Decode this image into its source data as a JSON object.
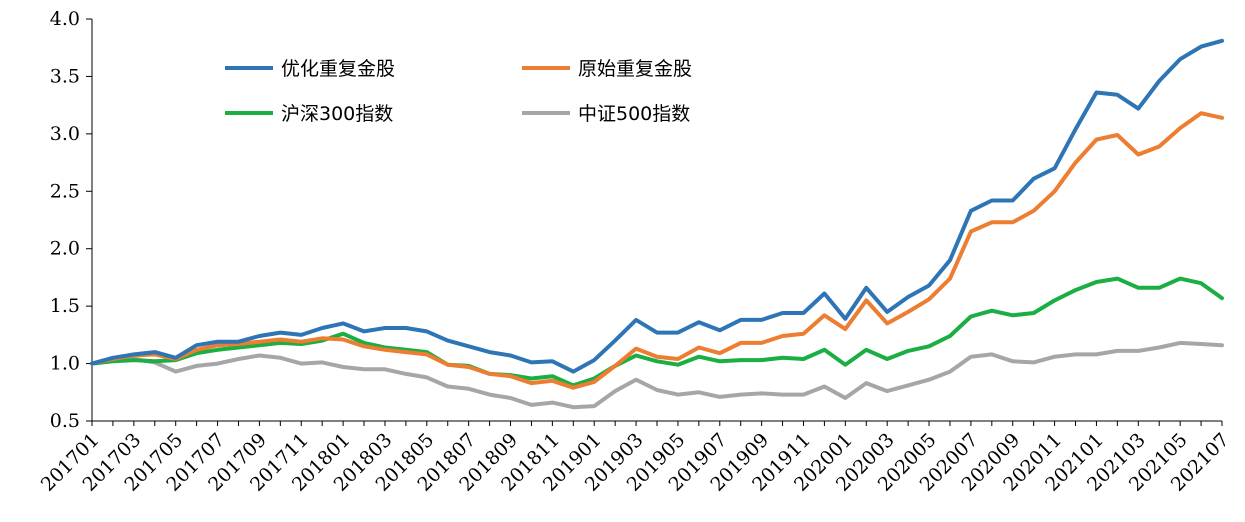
{
  "chart_data": {
    "type": "line",
    "title": "",
    "xlabel": "",
    "ylabel": "",
    "ylim": [
      0.5,
      4.0
    ],
    "yticks": [
      "0.5",
      "1.0",
      "1.5",
      "2.0",
      "2.5",
      "3.0",
      "3.5",
      "4.0"
    ],
    "grid": false,
    "legend_position": "top-left",
    "x": [
      "201701",
      "201702",
      "201703",
      "201704",
      "201705",
      "201706",
      "201707",
      "201708",
      "201709",
      "201710",
      "201711",
      "201712",
      "201801",
      "201802",
      "201803",
      "201804",
      "201805",
      "201806",
      "201807",
      "201808",
      "201809",
      "201810",
      "201811",
      "201812",
      "201901",
      "201902",
      "201903",
      "201904",
      "201905",
      "201906",
      "201907",
      "201908",
      "201909",
      "201910",
      "201911",
      "201912",
      "202001",
      "202002",
      "202003",
      "202004",
      "202005",
      "202006",
      "202007",
      "202008",
      "202009",
      "202010",
      "202011",
      "202012",
      "202101",
      "202102",
      "202103",
      "202104",
      "202105",
      "202106",
      "202107"
    ],
    "xtick_labels": [
      "201701",
      "201703",
      "201705",
      "201707",
      "201709",
      "201711",
      "201801",
      "201803",
      "201805",
      "201807",
      "201809",
      "201811",
      "201901",
      "201903",
      "201905",
      "201907",
      "201909",
      "201911",
      "202001",
      "202003",
      "202005",
      "202007",
      "202009",
      "202011",
      "202101",
      "202103",
      "202105",
      "202107"
    ],
    "series": [
      {
        "name": "优化重复金股",
        "color": "#2e75b6",
        "values": [
          1.0,
          1.05,
          1.08,
          1.1,
          1.05,
          1.16,
          1.19,
          1.19,
          1.24,
          1.27,
          1.25,
          1.31,
          1.35,
          1.28,
          1.31,
          1.31,
          1.28,
          1.2,
          1.15,
          1.1,
          1.07,
          1.01,
          1.02,
          0.93,
          1.03,
          1.2,
          1.38,
          1.27,
          1.27,
          1.36,
          1.29,
          1.38,
          1.38,
          1.44,
          1.44,
          1.61,
          1.39,
          1.66,
          1.45,
          1.58,
          1.68,
          1.9,
          2.33,
          2.42,
          2.42,
          2.61,
          2.7,
          3.04,
          3.36,
          3.34,
          3.22,
          3.46,
          3.65,
          3.76,
          3.81
        ]
      },
      {
        "name": "原始重复金股",
        "color": "#ed7d31",
        "values": [
          1.0,
          1.04,
          1.07,
          1.08,
          1.04,
          1.12,
          1.16,
          1.17,
          1.19,
          1.21,
          1.19,
          1.22,
          1.21,
          1.15,
          1.12,
          1.1,
          1.08,
          0.99,
          0.97,
          0.91,
          0.89,
          0.83,
          0.85,
          0.79,
          0.84,
          0.98,
          1.13,
          1.06,
          1.04,
          1.14,
          1.09,
          1.18,
          1.18,
          1.24,
          1.26,
          1.42,
          1.3,
          1.55,
          1.35,
          1.45,
          1.56,
          1.74,
          2.15,
          2.23,
          2.23,
          2.33,
          2.5,
          2.75,
          2.95,
          2.99,
          2.82,
          2.89,
          3.05,
          3.18,
          3.14
        ]
      },
      {
        "name": "沪深300指数",
        "color": "#1aae43",
        "values": [
          1.0,
          1.02,
          1.03,
          1.02,
          1.03,
          1.09,
          1.12,
          1.14,
          1.16,
          1.18,
          1.17,
          1.2,
          1.26,
          1.18,
          1.14,
          1.12,
          1.1,
          0.99,
          0.98,
          0.91,
          0.9,
          0.87,
          0.89,
          0.81,
          0.87,
          0.98,
          1.07,
          1.02,
          0.99,
          1.06,
          1.02,
          1.03,
          1.03,
          1.05,
          1.04,
          1.12,
          0.99,
          1.12,
          1.04,
          1.11,
          1.15,
          1.24,
          1.41,
          1.46,
          1.42,
          1.44,
          1.55,
          1.64,
          1.71,
          1.74,
          1.66,
          1.66,
          1.74,
          1.7,
          1.57
        ]
      },
      {
        "name": "中证500指数",
        "color": "#a6a6a6",
        "values": [
          1.0,
          1.03,
          1.04,
          1.01,
          0.93,
          0.98,
          1.0,
          1.04,
          1.07,
          1.05,
          1.0,
          1.01,
          0.97,
          0.95,
          0.95,
          0.91,
          0.88,
          0.8,
          0.78,
          0.73,
          0.7,
          0.64,
          0.66,
          0.62,
          0.63,
          0.76,
          0.86,
          0.77,
          0.73,
          0.75,
          0.71,
          0.73,
          0.74,
          0.73,
          0.73,
          0.8,
          0.7,
          0.83,
          0.76,
          0.81,
          0.86,
          0.93,
          1.06,
          1.08,
          1.02,
          1.01,
          1.06,
          1.08,
          1.08,
          1.11,
          1.11,
          1.14,
          1.18,
          1.17,
          1.16
        ]
      }
    ]
  }
}
